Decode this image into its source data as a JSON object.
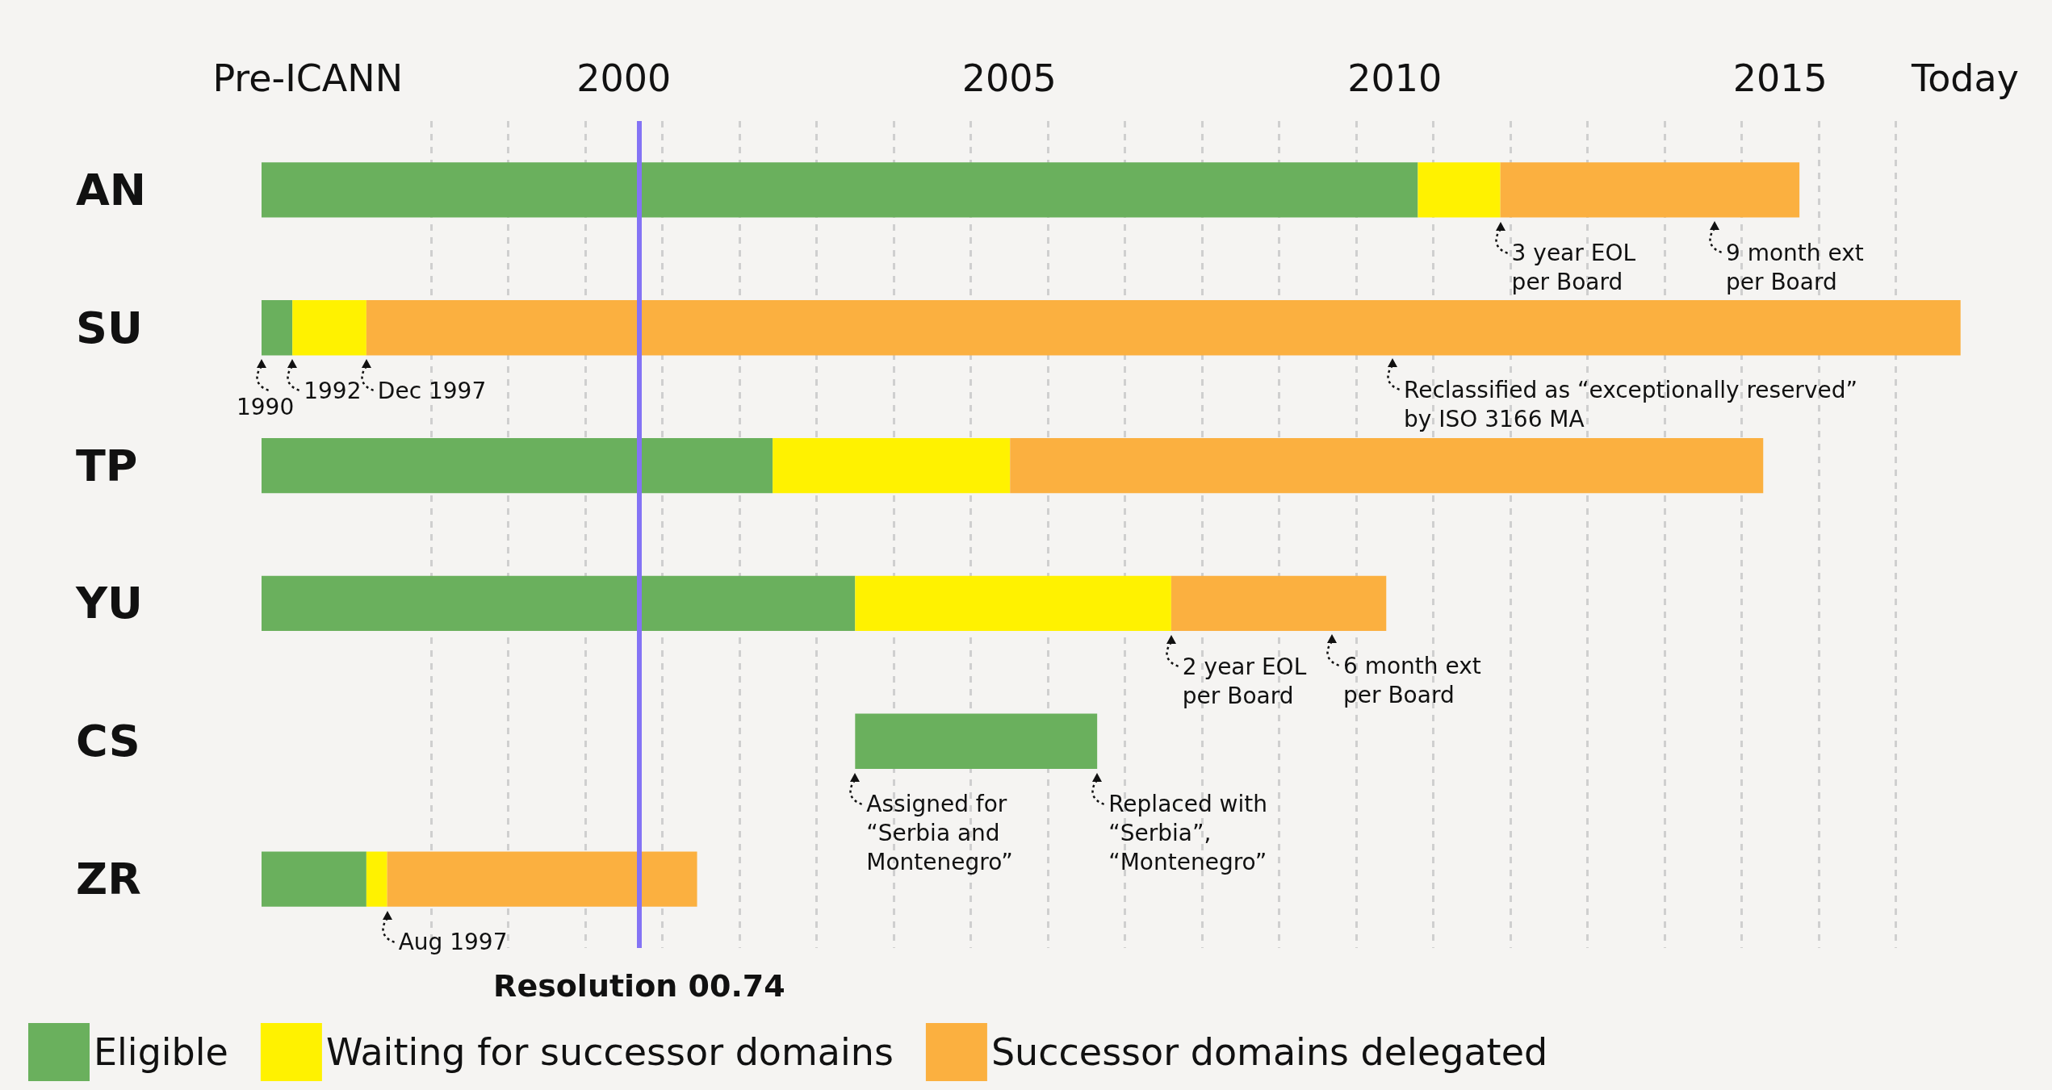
{
  "chart_data": {
    "type": "bar",
    "orientation": "horizontal",
    "categories": [
      "AN",
      "SU",
      "TP",
      "YU",
      "CS",
      "ZR"
    ],
    "series": [
      {
        "name": "Eligible",
        "color": "#6ab05d",
        "base": [
          1995.8,
          1995.8,
          1995.8,
          1995.8,
          2003.5,
          1995.8
        ],
        "values": [
          15.0,
          0.4,
          6.63,
          7.7,
          3.14,
          1.36
        ]
      },
      {
        "name": "Waiting for successor domains",
        "color": "#fff200",
        "base": [
          2010.8,
          1996.2,
          2002.43,
          2003.5,
          null,
          1997.16
        ],
        "values": [
          1.07,
          0.96,
          3.08,
          4.1,
          null,
          0.27
        ]
      },
      {
        "name": "Successor domains delegated",
        "color": "#fbb040",
        "base": [
          2011.87,
          1997.16,
          2005.51,
          2007.6,
          null,
          1997.43
        ],
        "values": [
          3.88,
          20.68,
          9.77,
          2.79,
          null,
          4.02
        ]
      }
    ],
    "xlim": [
      1995.8,
      2018
    ],
    "xticks": [
      {
        "value": 1996.4,
        "label": "Pre-ICANN"
      },
      {
        "value": 2000.5,
        "label": "2000"
      },
      {
        "value": 2005.5,
        "label": "2005"
      },
      {
        "value": 2010.5,
        "label": "2010"
      },
      {
        "value": 2015.5,
        "label": "2015"
      },
      {
        "value": 2017.9,
        "label": "Today"
      },
      {
        "value": 1998,
        "label": null
      },
      {
        "value": 1999,
        "label": null
      },
      {
        "value": 2000,
        "label": null
      },
      {
        "value": 2001,
        "label": null
      },
      {
        "value": 2002,
        "label": null
      },
      {
        "value": 2003,
        "label": null
      },
      {
        "value": 2004,
        "label": null
      },
      {
        "value": 2005,
        "label": null
      },
      {
        "value": 2006,
        "label": null
      },
      {
        "value": 2007,
        "label": null
      },
      {
        "value": 2008,
        "label": null
      },
      {
        "value": 2009,
        "label": null
      },
      {
        "value": 2010,
        "label": null
      },
      {
        "value": 2011,
        "label": null
      },
      {
        "value": 2012,
        "label": null
      },
      {
        "value": 2013,
        "label": null
      },
      {
        "value": 2014,
        "label": null
      },
      {
        "value": 2015,
        "label": null
      },
      {
        "value": 2016,
        "label": null
      },
      {
        "value": 2017,
        "label": null
      }
    ],
    "grid": "x",
    "legend": "bottom left",
    "ref_lines": [
      {
        "axis": "x",
        "value": 2000.7,
        "label": "Resolution 00.74",
        "color": "#8473f5"
      }
    ],
    "annotations": [
      {
        "text": "3 year EOL\nper Board",
        "x": 2011.87,
        "y": "AN"
      },
      "9 month ext\nper Board",
      {
        "text": "1990",
        "x": 1995.8,
        "y": "SU"
      },
      {
        "text": "1992",
        "x": 1996.2,
        "y": "SU"
      },
      {
        "text": "Dec 1997",
        "x": 1997.16,
        "y": "SU"
      },
      "Reclassified as “exceptionally reserved”\nby ISO 3166 MA",
      {
        "text": "2 year EOL\nper Board",
        "x": 2007.6,
        "y": "YU"
      },
      "6 month ext\nper Board",
      {
        "text": "Assigned for\n“Serbia and\nMontenegro”",
        "x": 2003.5,
        "y": "CS"
      },
      {
        "text": "Replaced with\n“Serbia”,\n“Montenegro”",
        "x": 2006.64,
        "y": "CS"
      },
      {
        "text": "Aug 1997",
        "x": 1997.43,
        "y": "ZR"
      }
    ]
  }
}
